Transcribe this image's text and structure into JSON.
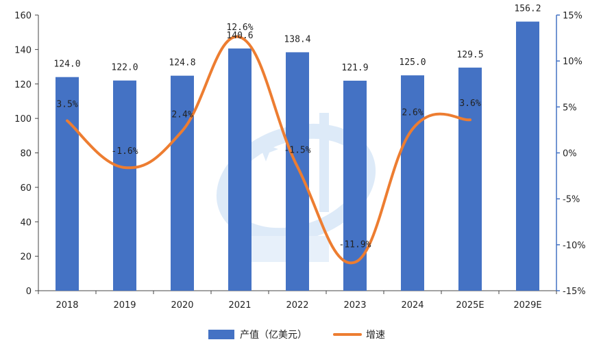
{
  "chart_data": {
    "type": "bar",
    "categories": [
      "2018",
      "2019",
      "2020",
      "2021",
      "2022",
      "2023",
      "2024",
      "2025E",
      "2029E"
    ],
    "series": [
      {
        "name": "产值（亿美元）",
        "type": "bar",
        "axis": "left",
        "values": [
          124.0,
          122.0,
          124.8,
          140.6,
          138.4,
          121.9,
          125.0,
          129.5,
          156.2
        ],
        "labels": [
          "124.0",
          "122.0",
          "124.8",
          "140.6",
          "138.4",
          "121.9",
          "125.0",
          "129.5",
          "156.2"
        ]
      },
      {
        "name": "增速",
        "type": "line",
        "axis": "right",
        "values": [
          3.5,
          -1.6,
          2.4,
          12.6,
          -1.5,
          -11.9,
          2.6,
          3.6,
          null
        ],
        "labels": [
          "3.5%",
          "-1.6%",
          "2.4%",
          "12.6%",
          "-1.5%",
          "-11.9%",
          "2.6%",
          "3.6%",
          ""
        ]
      }
    ],
    "y_left": {
      "min": 0,
      "max": 160,
      "ticks": [
        "0",
        "20",
        "40",
        "60",
        "80",
        "100",
        "120",
        "140",
        "160"
      ]
    },
    "y_right": {
      "min": -15,
      "max": 15,
      "ticks": [
        "-15%",
        "-10%",
        "-5%",
        "0%",
        "5%",
        "10%",
        "15%"
      ]
    },
    "legend": {
      "position": "bottom-center"
    },
    "grid": false,
    "colors": {
      "bar": "#4472C4",
      "line": "#ED7D31",
      "right_axis": "#4472C4"
    }
  }
}
